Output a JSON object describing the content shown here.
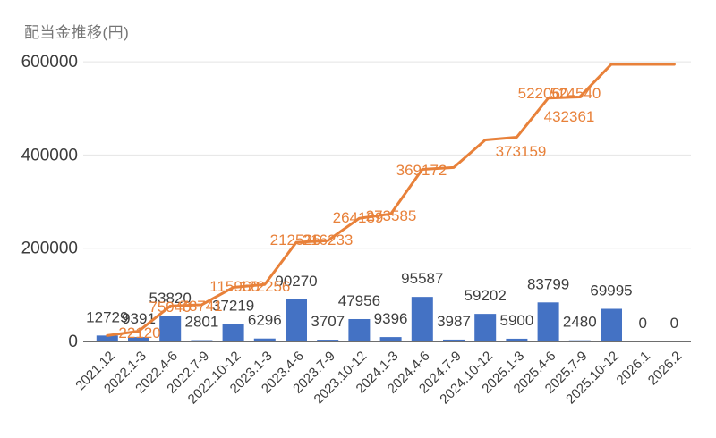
{
  "title": "配当金推移(円)",
  "chart_data": {
    "type": "bar",
    "subtype": "combo-bar-with-cumulative-line",
    "title": "配当金推移(円)",
    "xlabel": "",
    "ylabel": "",
    "ylim": [
      0,
      600000
    ],
    "y_ticks": [
      0,
      200000,
      400000,
      600000
    ],
    "grid": true,
    "legend": "none",
    "categories": [
      "2021.12",
      "2022.1-3",
      "2022.4-6",
      "2022.7-9",
      "2022.10-12",
      "2023.1-3",
      "2023.4-6",
      "2023.7-9",
      "2023.10-12",
      "2024.1-3",
      "2024.4-6",
      "2024.7-9",
      "2024.10-12",
      "2025.1-3",
      "2025.4-6",
      "2025.7-9",
      "2025.10-12",
      "2026.1",
      "2026.2"
    ],
    "series": [
      {
        "id": "quarterly-dividend-bars",
        "type": "bar",
        "color": "#4472c4",
        "values": [
          12729,
          9391,
          53820,
          2801,
          37219,
          6296,
          90270,
          3707,
          47956,
          9396,
          95587,
          3987,
          59202,
          5900,
          83799,
          2480,
          69995,
          0,
          0
        ]
      },
      {
        "id": "cumulative-dividend-line",
        "type": "line",
        "color": "#e8813a",
        "values": [
          12729,
          22120,
          75940,
          78741,
          115960,
          122256,
          212526,
          216233,
          264189,
          273585,
          369172,
          373159,
          432361,
          438261,
          522060,
          524540,
          594535,
          594535,
          594535
        ]
      }
    ],
    "colors": {
      "bar": "#4472c4",
      "line": "#e8813a",
      "grid": "#e4e4e4",
      "axis": "#6e6e6e",
      "bar_label": "#3e3e3e",
      "tick_label": "#3c3c3c",
      "title": "#757575"
    }
  }
}
